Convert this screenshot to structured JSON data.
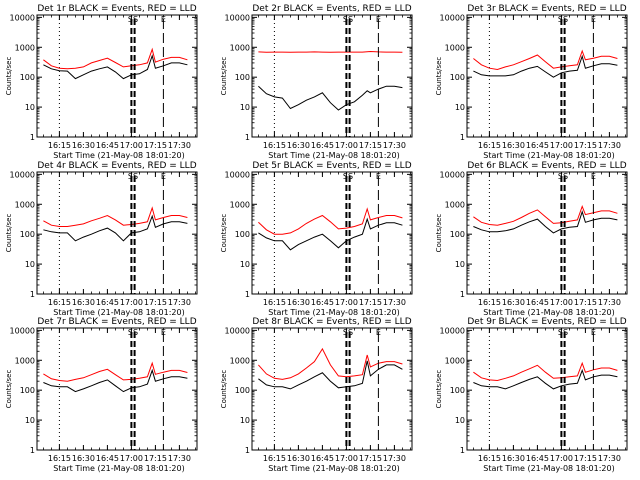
{
  "common": {
    "xlabel": "Start Time (21-May-08 18:01:20)",
    "ylabel": "Counts/sec",
    "x_ticks": [
      "16:15",
      "16:30",
      "16:45",
      "17:00",
      "17:15",
      "17:30"
    ],
    "y_ticks": [
      "10000",
      "1000",
      "100",
      "10",
      "1"
    ],
    "marker_labels": [
      "SS",
      "E"
    ],
    "colors": {
      "events": "#000000",
      "lld": "#ff0000"
    }
  },
  "chart_data": [
    {
      "type": "line",
      "title": "Det 1r BLACK = Events, RED = LLD",
      "y_scale": "log",
      "ylim": [
        1,
        12000
      ],
      "x": [
        "16:05",
        "16:10",
        "16:15",
        "16:20",
        "16:25",
        "16:30",
        "16:35",
        "16:40",
        "16:45",
        "16:50",
        "16:55",
        "17:00",
        "17:05",
        "17:10",
        "17:13",
        "17:15",
        "17:20",
        "17:25",
        "17:30",
        "17:35"
      ],
      "series": [
        {
          "name": "BLACK = Events",
          "values": [
            260,
            190,
            165,
            160,
            90,
            120,
            160,
            190,
            220,
            150,
            90,
            120,
            130,
            180,
            520,
            200,
            240,
            300,
            300,
            260
          ]
        },
        {
          "name": "RED = LLD",
          "values": [
            380,
            240,
            200,
            190,
            200,
            220,
            300,
            360,
            430,
            310,
            220,
            240,
            260,
            300,
            850,
            320,
            400,
            460,
            460,
            380
          ]
        }
      ]
    },
    {
      "type": "line",
      "title": "Det 2r BLACK = Events, RED = LLD",
      "y_scale": "log",
      "ylim": [
        1,
        12000
      ],
      "x": [
        "16:05",
        "16:10",
        "16:15",
        "16:20",
        "16:25",
        "16:30",
        "16:35",
        "16:40",
        "16:45",
        "16:50",
        "16:55",
        "17:00",
        "17:05",
        "17:10",
        "17:13",
        "17:15",
        "17:20",
        "17:25",
        "17:30",
        "17:35"
      ],
      "series": [
        {
          "name": "BLACK = Events",
          "values": [
            50,
            28,
            22,
            20,
            9,
            12,
            17,
            22,
            30,
            14,
            8,
            12,
            15,
            25,
            35,
            30,
            40,
            50,
            50,
            45
          ]
        },
        {
          "name": "RED = LLD",
          "values": [
            700,
            680,
            690,
            690,
            680,
            690,
            690,
            700,
            690,
            680,
            690,
            690,
            690,
            690,
            710,
            720,
            700,
            690,
            690,
            680
          ]
        }
      ]
    },
    {
      "type": "line",
      "title": "Det 3r BLACK = Events, RED = LLD",
      "y_scale": "log",
      "ylim": [
        1,
        12000
      ],
      "x": [
        "16:05",
        "16:10",
        "16:15",
        "16:20",
        "16:25",
        "16:30",
        "16:35",
        "16:40",
        "16:45",
        "16:50",
        "16:55",
        "17:00",
        "17:05",
        "17:10",
        "17:13",
        "17:15",
        "17:20",
        "17:25",
        "17:30",
        "17:35"
      ],
      "series": [
        {
          "name": "BLACK = Events",
          "values": [
            160,
            120,
            110,
            110,
            110,
            120,
            160,
            200,
            230,
            150,
            100,
            140,
            160,
            170,
            500,
            200,
            240,
            280,
            280,
            250
          ]
        },
        {
          "name": "RED = LLD",
          "values": [
            420,
            260,
            200,
            180,
            220,
            260,
            330,
            420,
            550,
            330,
            200,
            220,
            240,
            260,
            750,
            380,
            430,
            500,
            500,
            420
          ]
        }
      ]
    },
    {
      "type": "line",
      "title": "Det 4r BLACK = Events, RED = LLD",
      "y_scale": "log",
      "ylim": [
        1,
        12000
      ],
      "x": [
        "16:05",
        "16:10",
        "16:15",
        "16:20",
        "16:25",
        "16:30",
        "16:35",
        "16:40",
        "16:45",
        "16:50",
        "16:55",
        "17:00",
        "17:05",
        "17:10",
        "17:13",
        "17:15",
        "17:20",
        "17:25",
        "17:30",
        "17:35"
      ],
      "series": [
        {
          "name": "BLACK = Events",
          "values": [
            140,
            120,
            110,
            110,
            60,
            80,
            100,
            130,
            160,
            110,
            60,
            110,
            120,
            150,
            400,
            170,
            220,
            260,
            260,
            230
          ]
        },
        {
          "name": "RED = LLD",
          "values": [
            280,
            200,
            180,
            180,
            200,
            220,
            280,
            340,
            420,
            300,
            200,
            210,
            230,
            260,
            750,
            300,
            360,
            420,
            420,
            360
          ]
        }
      ]
    },
    {
      "type": "line",
      "title": "Det 5r BLACK = Events, RED = LLD",
      "y_scale": "log",
      "ylim": [
        1,
        12000
      ],
      "x": [
        "16:05",
        "16:10",
        "16:15",
        "16:20",
        "16:25",
        "16:30",
        "16:35",
        "16:40",
        "16:45",
        "16:50",
        "16:55",
        "17:00",
        "17:05",
        "17:10",
        "17:13",
        "17:15",
        "17:20",
        "17:25",
        "17:30",
        "17:35"
      ],
      "series": [
        {
          "name": "BLACK = Events",
          "values": [
            110,
            75,
            60,
            60,
            30,
            45,
            60,
            80,
            100,
            60,
            35,
            60,
            80,
            100,
            320,
            150,
            200,
            240,
            240,
            200
          ]
        },
        {
          "name": "RED = LLD",
          "values": [
            250,
            140,
            100,
            100,
            110,
            150,
            230,
            320,
            420,
            260,
            150,
            160,
            180,
            220,
            700,
            300,
            360,
            420,
            420,
            350
          ]
        }
      ]
    },
    {
      "type": "line",
      "title": "Det 6r BLACK = Events, RED = LLD",
      "y_scale": "log",
      "ylim": [
        1,
        12000
      ],
      "x": [
        "16:05",
        "16:10",
        "16:15",
        "16:20",
        "16:25",
        "16:30",
        "16:35",
        "16:40",
        "16:45",
        "16:50",
        "16:55",
        "17:00",
        "17:05",
        "17:10",
        "17:13",
        "17:15",
        "17:20",
        "17:25",
        "17:30",
        "17:35"
      ],
      "series": [
        {
          "name": "BLACK = Events",
          "values": [
            180,
            140,
            120,
            120,
            130,
            150,
            200,
            260,
            320,
            180,
            110,
            150,
            170,
            180,
            560,
            250,
            300,
            340,
            340,
            300
          ]
        },
        {
          "name": "RED = LLD",
          "values": [
            380,
            250,
            210,
            200,
            230,
            270,
            360,
            500,
            650,
            380,
            230,
            240,
            270,
            300,
            850,
            450,
            520,
            600,
            600,
            500
          ]
        }
      ]
    },
    {
      "type": "line",
      "title": "Det 7r BLACK = Events, RED = LLD",
      "y_scale": "log",
      "ylim": [
        1,
        12000
      ],
      "x": [
        "16:05",
        "16:10",
        "16:15",
        "16:20",
        "16:25",
        "16:30",
        "16:35",
        "16:40",
        "16:45",
        "16:50",
        "16:55",
        "17:00",
        "17:05",
        "17:10",
        "17:13",
        "17:15",
        "17:20",
        "17:25",
        "17:30",
        "17:35"
      ],
      "series": [
        {
          "name": "BLACK = Events",
          "values": [
            180,
            140,
            130,
            130,
            90,
            110,
            140,
            180,
            220,
            140,
            90,
            120,
            130,
            160,
            460,
            200,
            240,
            280,
            280,
            250
          ]
        },
        {
          "name": "RED = LLD",
          "values": [
            350,
            240,
            210,
            200,
            230,
            260,
            330,
            420,
            500,
            330,
            220,
            230,
            250,
            280,
            800,
            340,
            400,
            460,
            460,
            390
          ]
        }
      ]
    },
    {
      "type": "line",
      "title": "Det 8r BLACK = Events, RED = LLD",
      "y_scale": "log",
      "ylim": [
        1,
        12000
      ],
      "x": [
        "16:05",
        "16:10",
        "16:15",
        "16:20",
        "16:25",
        "16:30",
        "16:35",
        "16:40",
        "16:45",
        "16:50",
        "16:55",
        "17:00",
        "17:05",
        "17:10",
        "17:13",
        "17:15",
        "17:20",
        "17:25",
        "17:30",
        "17:35"
      ],
      "series": [
        {
          "name": "BLACK = Events",
          "values": [
            240,
            150,
            130,
            130,
            110,
            150,
            200,
            280,
            380,
            200,
            120,
            130,
            140,
            170,
            950,
            300,
            500,
            700,
            700,
            500
          ]
        },
        {
          "name": "RED = LLD",
          "values": [
            700,
            350,
            250,
            230,
            260,
            350,
            550,
            900,
            2400,
            700,
            300,
            280,
            300,
            330,
            1500,
            600,
            800,
            900,
            900,
            750
          ]
        }
      ]
    },
    {
      "type": "line",
      "title": "Det 9r BLACK = Events, RED = LLD",
      "y_scale": "log",
      "ylim": [
        1,
        12000
      ],
      "x": [
        "16:05",
        "16:10",
        "16:15",
        "16:20",
        "16:25",
        "16:30",
        "16:35",
        "16:40",
        "16:45",
        "16:50",
        "16:55",
        "17:00",
        "17:05",
        "17:10",
        "17:13",
        "17:15",
        "17:20",
        "17:25",
        "17:30",
        "17:35"
      ],
      "series": [
        {
          "name": "BLACK = Events",
          "values": [
            180,
            140,
            130,
            130,
            110,
            140,
            180,
            230,
            280,
            170,
            110,
            140,
            160,
            170,
            460,
            220,
            280,
            320,
            320,
            280
          ]
        },
        {
          "name": "RED = LLD",
          "values": [
            400,
            260,
            220,
            210,
            250,
            300,
            400,
            520,
            680,
            400,
            250,
            260,
            280,
            300,
            800,
            400,
            480,
            550,
            550,
            460
          ]
        }
      ]
    }
  ]
}
